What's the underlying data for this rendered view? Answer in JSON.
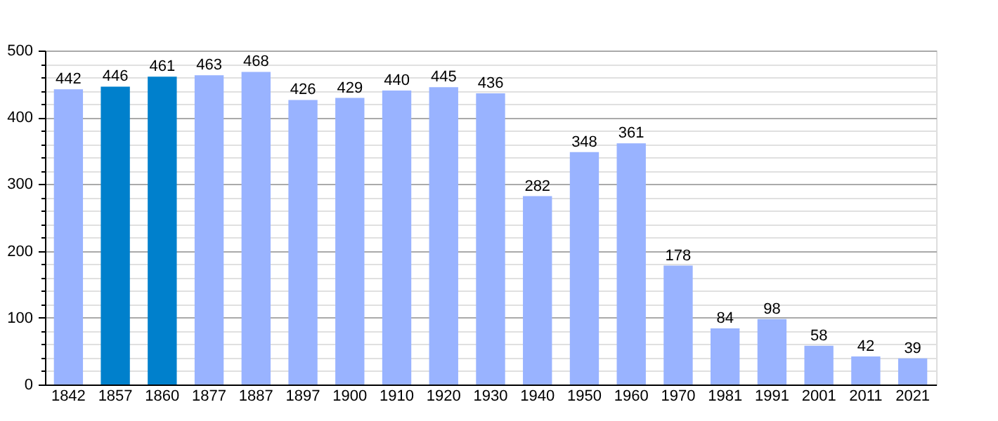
{
  "chart_data": {
    "type": "bar",
    "categories": [
      "1842",
      "1857",
      "1860",
      "1877",
      "1887",
      "1897",
      "1900",
      "1910",
      "1920",
      "1930",
      "1940",
      "1950",
      "1960",
      "1970",
      "1981",
      "1991",
      "2001",
      "2011",
      "2021"
    ],
    "values": [
      442,
      446,
      461,
      463,
      468,
      426,
      429,
      440,
      445,
      436,
      282,
      348,
      361,
      178,
      84,
      98,
      58,
      42,
      39
    ],
    "colors": [
      "#99b3ff",
      "#0080cc",
      "#0080cc",
      "#99b3ff",
      "#99b3ff",
      "#99b3ff",
      "#99b3ff",
      "#99b3ff",
      "#99b3ff",
      "#99b3ff",
      "#99b3ff",
      "#99b3ff",
      "#99b3ff",
      "#99b3ff",
      "#99b3ff",
      "#99b3ff",
      "#99b3ff",
      "#99b3ff",
      "#99b3ff"
    ],
    "ylim": [
      0,
      500
    ],
    "yticks": [
      0,
      {
        "value": 20,
        "label": null
      },
      {
        "value": 40,
        "label": null
      },
      {
        "value": 60,
        "label": null
      },
      {
        "value": 80,
        "label": null
      },
      100,
      {
        "value": 120,
        "label": null
      },
      {
        "value": 140,
        "label": null
      },
      {
        "value": 160,
        "label": null
      },
      {
        "value": 180,
        "label": null
      },
      200,
      {
        "value": 220,
        "label": null
      },
      {
        "value": 240,
        "label": null
      },
      {
        "value": 260,
        "label": null
      },
      {
        "value": 280,
        "label": null
      },
      300,
      {
        "value": 320,
        "label": null
      },
      {
        "value": 340,
        "label": null
      },
      {
        "value": 360,
        "label": null
      },
      {
        "value": 380,
        "label": null
      },
      400,
      {
        "value": 420,
        "label": null
      },
      {
        "value": 440,
        "label": null
      },
      {
        "value": 460,
        "label": null
      },
      {
        "value": 480,
        "label": null
      },
      500
    ],
    "grid": "y",
    "data_labels": true
  }
}
